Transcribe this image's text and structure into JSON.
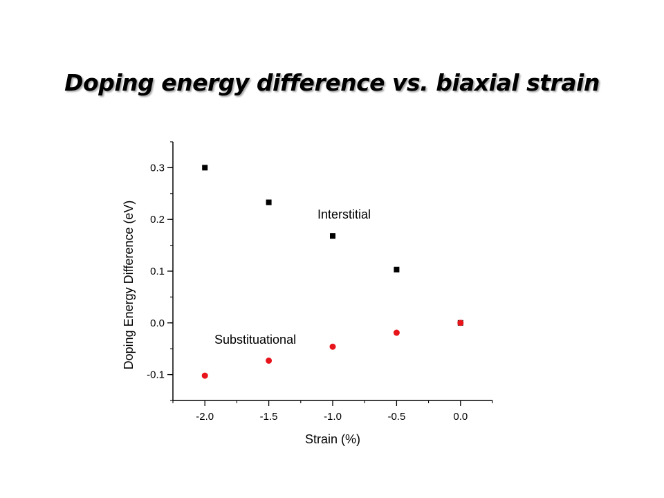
{
  "slide": {
    "title": "Doping energy difference vs. biaxial strain"
  },
  "chart_data": {
    "type": "scatter",
    "title": "",
    "xlabel": "Strain (%)",
    "ylabel": "Doping Energy Difference (eV)",
    "xlim": [
      -2.25,
      0.25
    ],
    "ylim": [
      -0.15,
      0.35
    ],
    "x_ticks": [
      -2.0,
      -1.5,
      -1.0,
      -0.5,
      0.0
    ],
    "x_tick_labels": [
      "-2.0",
      "-1.5",
      "-1.0",
      "-0.5",
      "0.0"
    ],
    "y_ticks": [
      -0.1,
      0.0,
      0.1,
      0.2,
      0.3
    ],
    "y_tick_labels": [
      "-0.1",
      "0.0",
      "0.1",
      "0.2",
      "0.3"
    ],
    "grid": false,
    "series": [
      {
        "name": "Interstitial",
        "marker": "square",
        "color": "#000000",
        "x": [
          -2.0,
          -1.5,
          -1.0,
          -0.5,
          0.0
        ],
        "y": [
          0.3,
          0.233,
          0.168,
          0.103,
          0.0
        ]
      },
      {
        "name": "Substituational",
        "marker": "circle",
        "color": "#e8141b",
        "x": [
          -2.0,
          -1.5,
          -1.0,
          -0.5,
          0.0
        ],
        "y": [
          -0.102,
          -0.073,
          -0.046,
          -0.019,
          0.0
        ]
      }
    ]
  }
}
